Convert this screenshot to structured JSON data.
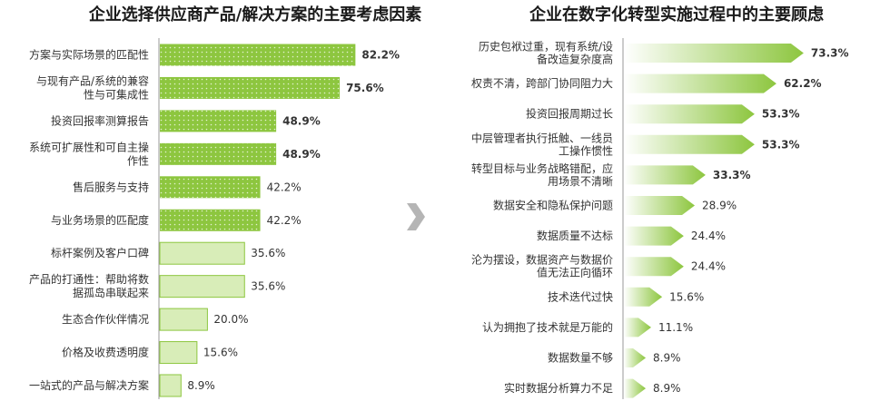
{
  "colors": {
    "bar_dark": "#8dc63f",
    "bar_light": "#d8edb8",
    "bar_light_border": "#8dc63f",
    "arrow_fill_light": "#ffffff",
    "axis": "#9a9a9a",
    "separator_arrow": "#b5b5b5"
  },
  "chart_data": [
    {
      "type": "bar",
      "orientation": "horizontal",
      "title": "企业选择供应商产品/解决方案的主要考虑因素",
      "unit": "%",
      "xlim": [
        0,
        100
      ],
      "categories": [
        [
          "方案与实际场景的匹配性"
        ],
        [
          "与现有产品/系统的兼容",
          "性与可集成性"
        ],
        [
          "投资回报率测算报告"
        ],
        [
          "系统可扩展性和可自主操",
          "作性"
        ],
        [
          "售后服务与支持"
        ],
        [
          "与业务场景的匹配度"
        ],
        [
          "标杆案例及客户口碑"
        ],
        [
          "产品的打通性：帮助将数",
          "据孤岛串联起来"
        ],
        [
          "生态合作伙伴情况"
        ],
        [
          "价格及收费透明度"
        ],
        [
          "一站式的产品与解决方案"
        ]
      ],
      "values": [
        82.2,
        75.6,
        48.9,
        48.9,
        42.2,
        42.2,
        35.6,
        35.6,
        20.0,
        15.6,
        8.9
      ],
      "labels": [
        "82.2%",
        "75.6%",
        "48.9%",
        "48.9%",
        "42.2%",
        "42.2%",
        "35.6%",
        "35.6%",
        "20.0%",
        "15.6%",
        "8.9%"
      ],
      "bar_style": [
        "dark",
        "dark",
        "dark",
        "dark",
        "dark",
        "dark",
        "light",
        "light",
        "light",
        "light",
        "light"
      ],
      "label_bold": [
        true,
        true,
        true,
        true,
        false,
        false,
        false,
        false,
        false,
        false,
        false
      ]
    },
    {
      "type": "bar",
      "orientation": "horizontal",
      "bar_shape": "arrow-gradient",
      "title": "企业在数字化转型实施过程中的主要顾虑",
      "unit": "%",
      "xlim": [
        0,
        100
      ],
      "categories": [
        [
          "历史包袱过重，现有系统/设",
          "备改造复杂度高"
        ],
        [
          "权责不清，跨部门协同阻力大"
        ],
        [
          "投资回报周期过长"
        ],
        [
          "中层管理者执行抵触、一线员",
          "工操作惯性"
        ],
        [
          "转型目标与业务战略错配，应",
          "用场景不清晰"
        ],
        [
          "数据安全和隐私保护问题"
        ],
        [
          "数据质量不达标"
        ],
        [
          "沦为摆设，数据资产与数据价",
          "值无法正向循环"
        ],
        [
          "技术迭代过快"
        ],
        [
          "认为拥抱了技术就是万能的"
        ],
        [
          "数据数量不够"
        ],
        [
          "实时数据分析算力不足"
        ]
      ],
      "values": [
        73.3,
        62.2,
        53.3,
        53.3,
        33.3,
        28.9,
        24.4,
        24.4,
        15.6,
        11.1,
        8.9,
        8.9
      ],
      "labels": [
        "73.3%",
        "62.2%",
        "53.3%",
        "53.3%",
        "33.3%",
        "28.9%",
        "24.4%",
        "24.4%",
        "15.6%",
        "11.1%",
        "8.9%",
        "8.9%"
      ],
      "label_bold": [
        true,
        true,
        true,
        true,
        true,
        false,
        false,
        false,
        false,
        false,
        false,
        false
      ]
    }
  ]
}
